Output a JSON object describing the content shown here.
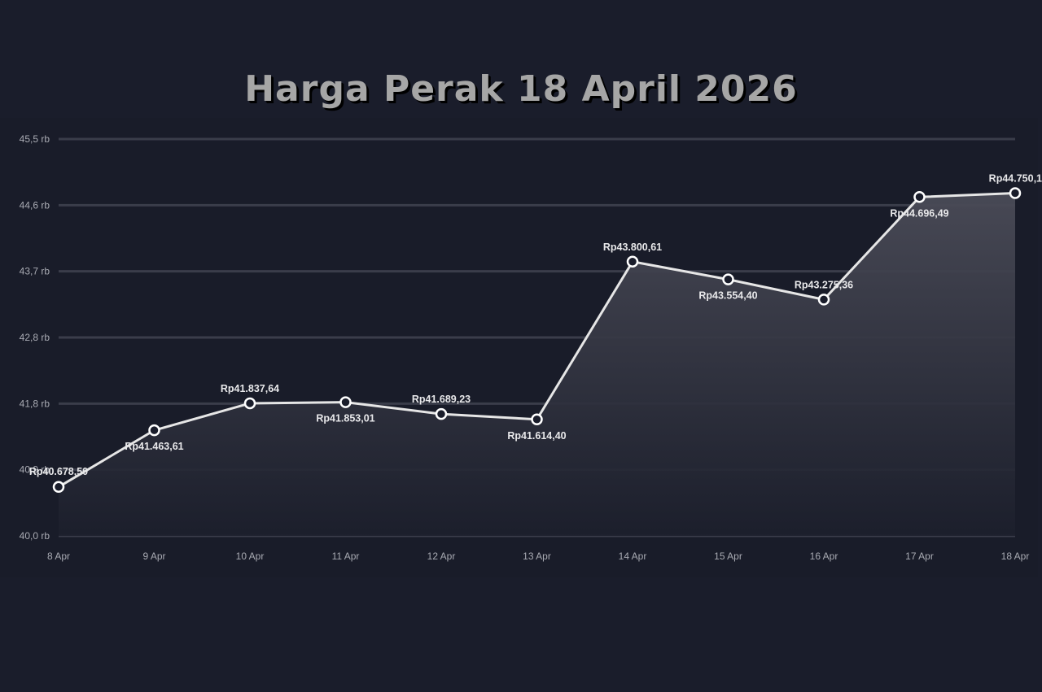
{
  "title": "Harga Perak 18 April 2026",
  "chart_data": {
    "type": "area",
    "title": "Harga Perak 18 April 2026",
    "xlabel": "",
    "ylabel": "",
    "categories": [
      "8 Apr",
      "9 Apr",
      "10 Apr",
      "11 Apr",
      "12 Apr",
      "13 Apr",
      "14 Apr",
      "15 Apr",
      "16 Apr",
      "17 Apr",
      "18 Apr"
    ],
    "values": [
      40678.5,
      41463.61,
      41837.64,
      41853.01,
      41689.23,
      41614.4,
      43800.61,
      43554.4,
      43275.36,
      44696.49,
      44750.1
    ],
    "data_labels": [
      "Rp40.678,50",
      "Rp41.463,61",
      "Rp41.837,64",
      "Rp41.853,01",
      "Rp41.689,23",
      "Rp41.614,40",
      "Rp43.800,61",
      "Rp43.554,40",
      "Rp43.275,36",
      "Rp44.696,49",
      "Rp44.750,1"
    ],
    "y_ticks": [
      "40,0 rb",
      "40,9 rb",
      "41,8 rb",
      "42,8 rb",
      "43,7 rb",
      "44,6 rb",
      "45,5 rb"
    ],
    "y_tick_values": [
      40000,
      40900,
      41800,
      42800,
      43700,
      44600,
      45500
    ],
    "ylim": [
      40000,
      45500
    ],
    "grid": true,
    "legend": "none",
    "colors": {
      "line": "#e6e6e6",
      "marker_fill": "#1a1d2b",
      "area_top": "#4a4b57",
      "background": "#1a1d2b",
      "grid": "#3a3d4a"
    }
  }
}
